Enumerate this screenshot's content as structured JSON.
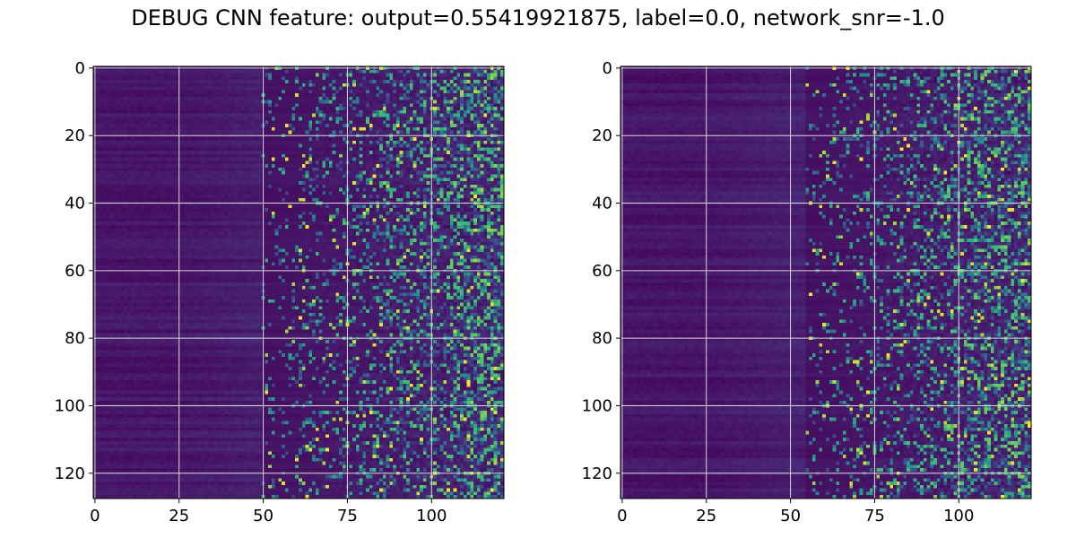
{
  "figure": {
    "title": "DEBUG CNN feature: output=0.55419921875, label=0.0, network_snr=-1.0"
  },
  "chart_data": [
    {
      "type": "heatmap",
      "title": "",
      "xlabel": "",
      "ylabel": "",
      "xlim": [
        0,
        121
      ],
      "ylim": [
        128,
        0
      ],
      "xticks": [
        "0",
        "25",
        "50",
        "75",
        "100"
      ],
      "yticks": [
        "0",
        "20",
        "40",
        "60",
        "80",
        "100",
        "120"
      ],
      "grid": true,
      "colormap": "viridis",
      "seed": 17,
      "pattern": "dark low-variance columns 0-50, increasing speckled noise toward columns 75-121"
    },
    {
      "type": "heatmap",
      "title": "",
      "xlabel": "",
      "ylabel": "",
      "xlim": [
        0,
        121
      ],
      "ylim": [
        128,
        0
      ],
      "xticks": [
        "0",
        "25",
        "50",
        "75",
        "100"
      ],
      "yticks": [
        "0",
        "20",
        "40",
        "60",
        "80",
        "100",
        "120"
      ],
      "grid": true,
      "colormap": "viridis",
      "seed": 91,
      "pattern": "dark low-variance columns 0-55, increasing speckled noise toward columns 75-121"
    }
  ],
  "colors": {
    "background": "#ffffff",
    "grid": "#d9d9d9",
    "axis": "#000000"
  }
}
